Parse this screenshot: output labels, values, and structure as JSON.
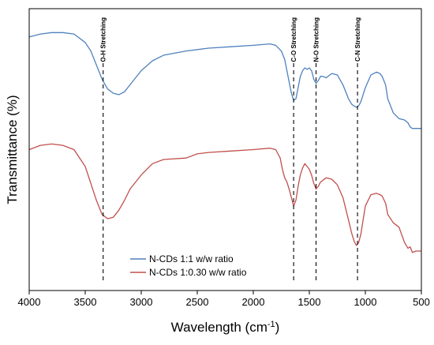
{
  "chart_data": {
    "type": "line",
    "title": "",
    "xlabel": "Wavelength (cm",
    "xlabel_sup": "-1",
    "xlabel_end": ")",
    "ylabel": "Transmittance (%)",
    "xlim": [
      4000,
      500
    ],
    "x_reversed": true,
    "ylim": [
      0,
      100
    ],
    "y_ticks_shown": false,
    "grid": false,
    "x_ticks": [
      "4000",
      "3500",
      "3000",
      "2500",
      "2000",
      "1500",
      "1000",
      "500"
    ],
    "legend_position": "bottom-left",
    "annotations": [
      {
        "label": "O-H Stretching",
        "x": 3340
      },
      {
        "label": "C-O Stretching",
        "x": 1640
      },
      {
        "label": "N-O Stretching",
        "x": 1440
      },
      {
        "label": "C-N Stretching",
        "x": 1070
      }
    ],
    "series": [
      {
        "name": "N-CDs 1:1 w/w ratio",
        "color": "#4f81bd",
        "x": [
          4000,
          3900,
          3800,
          3700,
          3600,
          3500,
          3450,
          3400,
          3350,
          3300,
          3250,
          3200,
          3150,
          3100,
          3000,
          2900,
          2800,
          2600,
          2400,
          2200,
          2000,
          1850,
          1800,
          1750,
          1720,
          1700,
          1680,
          1660,
          1640,
          1620,
          1600,
          1580,
          1560,
          1540,
          1520,
          1500,
          1480,
          1460,
          1440,
          1420,
          1400,
          1380,
          1350,
          1300,
          1250,
          1200,
          1150,
          1120,
          1100,
          1080,
          1060,
          1040,
          1000,
          950,
          900,
          870,
          850,
          820,
          800,
          750,
          700,
          650,
          620,
          600,
          580,
          550,
          500
        ],
        "y": [
          90.0,
          91.0,
          91.5,
          91.5,
          91.0,
          88.0,
          85.0,
          80.0,
          75.0,
          71.5,
          70.0,
          69.5,
          70.5,
          73.0,
          78.0,
          81.5,
          83.5,
          85.0,
          86.0,
          86.5,
          87.0,
          87.5,
          87.0,
          85.0,
          82.0,
          78.0,
          74.0,
          70.0,
          67.5,
          68.0,
          72.0,
          76.0,
          78.0,
          79.0,
          78.5,
          79.0,
          78.0,
          75.0,
          73.5,
          74.5,
          76.0,
          76.0,
          75.5,
          77.0,
          76.5,
          73.0,
          68.0,
          66.0,
          65.5,
          65.0,
          65.5,
          67.0,
          72.0,
          76.5,
          77.5,
          77.0,
          76.0,
          73.0,
          68.0,
          63.0,
          61.0,
          60.5,
          59.5,
          58.0,
          57.5,
          57.5,
          57.5
        ]
      },
      {
        "name": "N-CDs 1:0.30 w/w ratio",
        "color": "#c0504d",
        "x": [
          4000,
          3900,
          3800,
          3700,
          3600,
          3500,
          3450,
          3400,
          3350,
          3300,
          3250,
          3200,
          3150,
          3100,
          3000,
          2900,
          2800,
          2600,
          2500,
          2400,
          2200,
          2000,
          1850,
          1800,
          1760,
          1740,
          1720,
          1700,
          1680,
          1660,
          1640,
          1620,
          1600,
          1580,
          1560,
          1540,
          1520,
          1500,
          1480,
          1460,
          1440,
          1420,
          1400,
          1350,
          1300,
          1250,
          1200,
          1150,
          1120,
          1100,
          1080,
          1060,
          1040,
          1000,
          950,
          900,
          870,
          850,
          820,
          800,
          750,
          700,
          650,
          620,
          600,
          580,
          550,
          500
        ],
        "y": [
          50.0,
          51.5,
          52.0,
          51.5,
          50.0,
          44.0,
          38.0,
          32.0,
          27.0,
          25.5,
          26.0,
          28.5,
          32.0,
          36.0,
          41.0,
          45.0,
          46.5,
          47.0,
          48.5,
          49.0,
          49.5,
          50.0,
          50.5,
          50.0,
          47.0,
          43.0,
          40.0,
          38.5,
          36.0,
          33.0,
          30.0,
          32.0,
          37.0,
          41.0,
          43.5,
          45.0,
          44.0,
          43.0,
          41.0,
          38.0,
          36.0,
          37.0,
          38.5,
          40.0,
          39.5,
          37.5,
          33.0,
          25.0,
          20.0,
          17.5,
          16.0,
          17.0,
          20.0,
          30.0,
          34.0,
          34.5,
          34.0,
          33.5,
          31.0,
          27.0,
          24.0,
          22.5,
          17.0,
          15.0,
          15.5,
          13.5,
          14.0,
          14.0
        ]
      }
    ]
  }
}
